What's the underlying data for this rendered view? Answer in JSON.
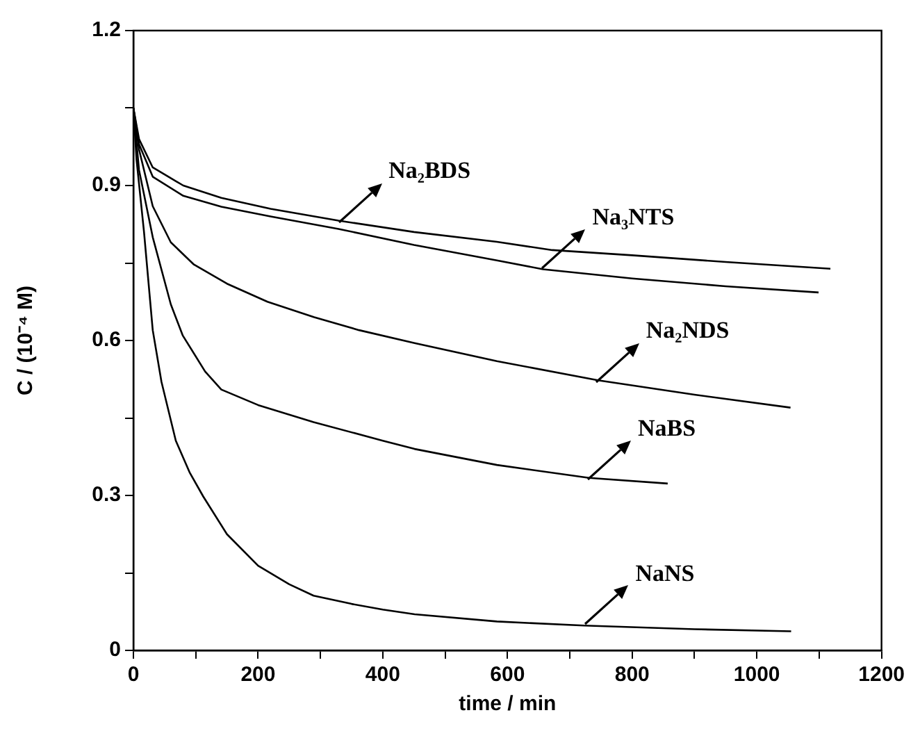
{
  "chart_data": {
    "type": "line",
    "xlabel": "time / min",
    "ylabel": "C / (10⁻⁴ M)",
    "xlim": [
      0,
      1200
    ],
    "ylim": [
      0,
      1.2
    ],
    "xticks": [
      0,
      {
        "value": 100,
        "label": null
      },
      200,
      {
        "value": 300,
        "label": null
      },
      400,
      {
        "value": 500,
        "label": null
      },
      600,
      {
        "value": 700,
        "label": null
      },
      800,
      {
        "value": 900,
        "label": null
      },
      1000,
      {
        "value": 1100,
        "label": null
      },
      1200
    ],
    "yticks": [
      0,
      {
        "value": 0.15,
        "label": null
      },
      0.3,
      {
        "value": 0.45,
        "label": null
      },
      0.6,
      {
        "value": 0.75,
        "label": null
      },
      0.9,
      {
        "value": 1.05,
        "label": null
      },
      1.2
    ],
    "series": [
      {
        "color": "#000000",
        "x": [
          0,
          9,
          31,
          80,
          141,
          220,
          329,
          450,
          583,
          672,
          800,
          950,
          1118
        ],
        "values": [
          1.05,
          0.99,
          0.935,
          0.9,
          0.876,
          0.855,
          0.832,
          0.81,
          0.791,
          0.775,
          0.765,
          0.752,
          0.739
        ]
      },
      {
        "color": "#000000",
        "x": [
          0,
          9,
          31,
          80,
          141,
          220,
          329,
          450,
          583,
          657,
          800,
          950,
          1099
        ],
        "values": [
          1.05,
          0.98,
          0.917,
          0.88,
          0.859,
          0.84,
          0.816,
          0.785,
          0.755,
          0.738,
          0.72,
          0.705,
          0.693
        ]
      },
      {
        "color": "#000000",
        "x": [
          0,
          9,
          31,
          60,
          97,
          150,
          215,
          290,
          362,
          451,
          583,
          745,
          900,
          1054
        ],
        "values": [
          1.05,
          0.97,
          0.86,
          0.79,
          0.747,
          0.71,
          0.675,
          0.645,
          0.62,
          0.595,
          0.56,
          0.523,
          0.495,
          0.47
        ]
      },
      {
        "color": "#000000",
        "x": [
          0,
          9,
          31,
          60,
          79,
          115,
          141,
          200,
          289,
          400,
          451,
          583,
          731,
          857
        ],
        "values": [
          1.05,
          0.93,
          0.8,
          0.67,
          0.61,
          0.54,
          0.505,
          0.475,
          0.442,
          0.406,
          0.39,
          0.359,
          0.334,
          0.323
        ]
      },
      {
        "color": "#000000",
        "x": [
          0,
          5,
          17,
          31,
          45,
          68,
          90,
          112,
          150,
          200,
          250,
          289,
          350,
          400,
          451,
          583,
          723,
          900,
          1055
        ],
        "values": [
          1.05,
          0.95,
          0.81,
          0.62,
          0.52,
          0.406,
          0.345,
          0.298,
          0.225,
          0.164,
          0.128,
          0.106,
          0.09,
          0.079,
          0.07,
          0.056,
          0.048,
          0.041,
          0.037
        ]
      }
    ],
    "annotations": [
      {
        "text": "Na₂BDS",
        "x": 329,
        "y": 0.83
      },
      {
        "text": "Na₃NTS",
        "x": 656,
        "y": 0.74
      },
      {
        "text": "Na₂NDS",
        "x": 742,
        "y": 0.52
      },
      {
        "text": "NaBS",
        "x": 729,
        "y": 0.33
      },
      {
        "text": "NaNS",
        "x": 725,
        "y": 0.05
      }
    ]
  }
}
